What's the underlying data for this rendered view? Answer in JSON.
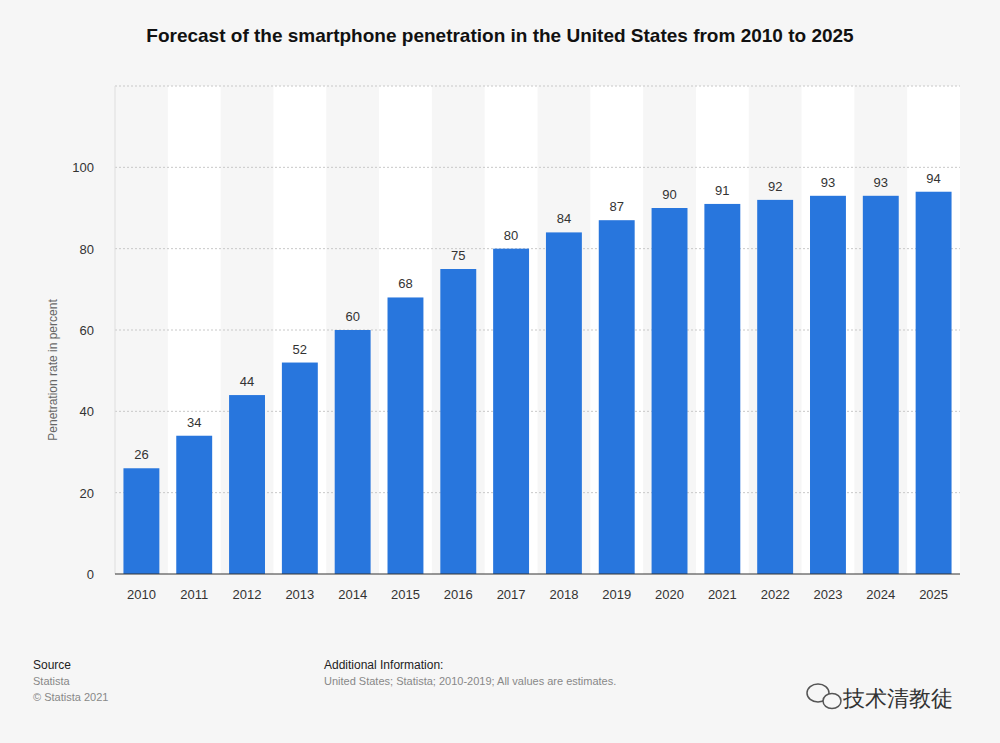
{
  "chart_data": {
    "type": "bar",
    "title": "Forecast of the smartphone penetration in the United States from 2010 to 2025",
    "y_label": "Penetration rate in percent",
    "categories": [
      "2010",
      "2011",
      "2012",
      "2013",
      "2014",
      "2015",
      "2016",
      "2017",
      "2018",
      "2019",
      "2020",
      "2021",
      "2022",
      "2023",
      "2024",
      "2025"
    ],
    "values": [
      26,
      34,
      44,
      52,
      60,
      68,
      75,
      80,
      84,
      87,
      90,
      91,
      92,
      93,
      93,
      94
    ],
    "color": "#2876dd",
    "ylim": [
      0,
      120
    ],
    "yticks": [
      0,
      20,
      40,
      60,
      80,
      100
    ],
    "grid": true,
    "data_labels": true,
    "source": {
      "heading": "Source",
      "lines": [
        "Statista",
        "© Statista 2021"
      ]
    },
    "additional_info": {
      "heading": "Additional Information:",
      "lines": [
        "United States; Statista; 2010-2019; All values are estimates."
      ]
    },
    "watermark": "技术清教徒"
  }
}
